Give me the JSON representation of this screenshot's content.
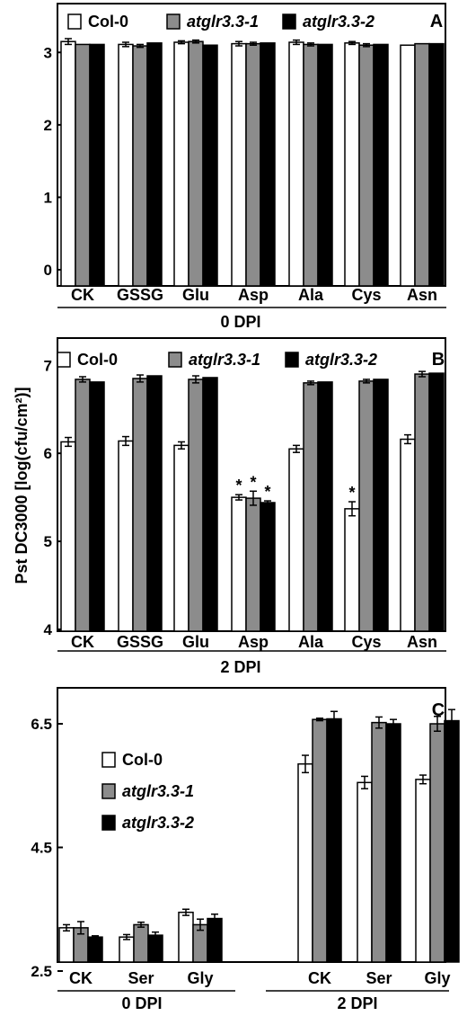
{
  "colors": {
    "col0": "#ffffff",
    "m1": "#8c8c8c",
    "m2": "#000000"
  },
  "chart_data": [
    {
      "type": "bar",
      "panel_label": "A",
      "group_label": "0 DPI",
      "categories": [
        "CK",
        "GSSG",
        "Glu",
        "Asp",
        "Ala",
        "Cys",
        "Asn"
      ],
      "ylim": [
        0,
        3.5
      ],
      "yticks": [
        "0",
        "1",
        "2",
        "3"
      ],
      "ytick_values": [
        0,
        1,
        2,
        3
      ],
      "series": [
        {
          "name": "Col-0",
          "values": [
            3.15,
            3.11,
            3.14,
            3.12,
            3.14,
            3.13,
            3.1
          ],
          "err": [
            0.04,
            0.03,
            0.02,
            0.03,
            0.03,
            0.02,
            0
          ]
        },
        {
          "name": "atglr3.3-1",
          "values": [
            3.11,
            3.09,
            3.15,
            3.12,
            3.11,
            3.1,
            3.12
          ],
          "err": [
            0,
            0.02,
            0.02,
            0.02,
            0.02,
            0.02,
            0
          ]
        },
        {
          "name": "atglr3.3-2",
          "values": [
            3.11,
            3.13,
            3.1,
            3.13,
            3.11,
            3.11,
            3.12
          ],
          "err": [
            0,
            0,
            0,
            0,
            0,
            0,
            0
          ]
        }
      ]
    },
    {
      "type": "bar",
      "panel_label": "B",
      "group_label": "2 DPI",
      "ylabel": "Pst DC3000 [log(cfu/cm²)]",
      "categories": [
        "CK",
        "GSSG",
        "Glu",
        "Asp",
        "Ala",
        "Cys",
        "Asn"
      ],
      "ylim": [
        4,
        7.35
      ],
      "yticks": [
        "4",
        "5",
        "6",
        "7"
      ],
      "ytick_values": [
        4,
        5,
        6,
        7
      ],
      "significance_marker": "*",
      "series": [
        {
          "name": "Col-0",
          "values": [
            6.13,
            6.14,
            6.09,
            5.5,
            6.05,
            5.37,
            6.16
          ],
          "err": [
            0.05,
            0.05,
            0.04,
            0.03,
            0.04,
            0.08,
            0.05
          ],
          "significant": [
            false,
            false,
            false,
            true,
            false,
            true,
            false
          ]
        },
        {
          "name": "atglr3.3-1",
          "values": [
            6.84,
            6.85,
            6.84,
            5.49,
            6.8,
            6.82,
            6.9
          ],
          "err": [
            0.03,
            0.04,
            0.04,
            0.08,
            0.02,
            0.02,
            0.03
          ],
          "significant": [
            false,
            false,
            false,
            true,
            false,
            false,
            false
          ]
        },
        {
          "name": "atglr3.3-2",
          "values": [
            6.81,
            6.88,
            6.86,
            5.44,
            6.81,
            6.84,
            6.91
          ],
          "err": [
            0,
            0,
            0,
            0.02,
            0,
            0,
            0
          ],
          "significant": [
            false,
            false,
            false,
            true,
            false,
            false,
            false
          ]
        }
      ]
    },
    {
      "type": "bar",
      "panel_label": "C",
      "categories": [
        "CK",
        "Ser",
        "Gly",
        "CK",
        "Ser",
        "Gly"
      ],
      "groups": [
        {
          "label": "0 DPI",
          "categories": [
            "CK",
            "Ser",
            "Gly"
          ]
        },
        {
          "label": "2 DPI",
          "categories": [
            "CK",
            "Ser",
            "Gly"
          ]
        }
      ],
      "ylim": [
        2.5,
        7.3
      ],
      "yticks": [
        "2.5",
        "4.5",
        "6.5"
      ],
      "ytick_values": [
        2.5,
        4.5,
        6.5
      ],
      "series": [
        {
          "name": "Col-0",
          "values": [
            3.2,
            3.05,
            3.45,
            5.85,
            5.55,
            5.6
          ],
          "err": [
            0.05,
            0.04,
            0.05,
            0.14,
            0.1,
            0.07
          ]
        },
        {
          "name": "atglr3.3-1",
          "values": [
            3.2,
            3.25,
            3.25,
            6.57,
            6.52,
            6.5
          ],
          "err": [
            0.1,
            0.04,
            0.09,
            0.02,
            0.09,
            0.12
          ]
        },
        {
          "name": "atglr3.3-2",
          "values": [
            3.05,
            3.08,
            3.35,
            6.58,
            6.5,
            6.55
          ],
          "err": [
            0.02,
            0.05,
            0.07,
            0.12,
            0.07,
            0.18
          ]
        }
      ]
    }
  ]
}
